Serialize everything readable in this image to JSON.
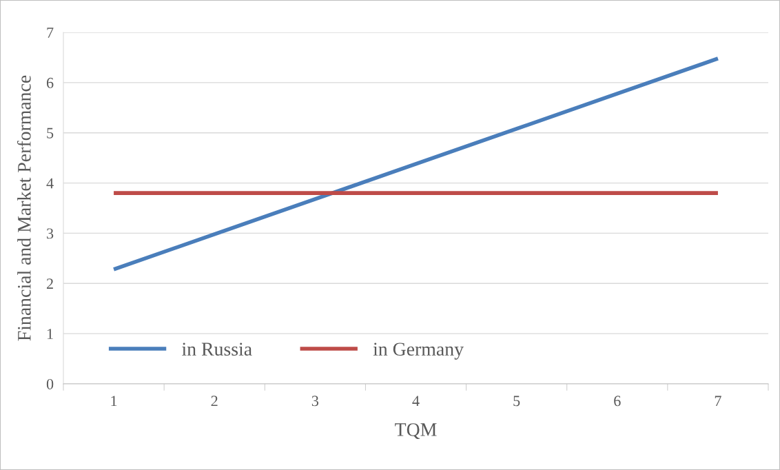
{
  "chart_data": {
    "type": "line",
    "xlabel": "TQM",
    "ylabel": "Financial and Market Performance",
    "categories": [
      "1",
      "2",
      "3",
      "4",
      "5",
      "6",
      "7"
    ],
    "series": [
      {
        "name": "in Russia",
        "color": "#4a7ebb",
        "values": [
          2.28,
          2.98,
          3.68,
          4.38,
          5.08,
          5.78,
          6.48
        ]
      },
      {
        "name": "in Germany",
        "color": "#be4b48",
        "values": [
          3.8,
          3.8,
          3.8,
          3.8,
          3.8,
          3.8,
          3.8
        ]
      }
    ],
    "ylim": [
      0,
      7
    ],
    "yticks": [
      0,
      1,
      2,
      3,
      4,
      5,
      6,
      7
    ],
    "grid": "y",
    "legend": "bottom left",
    "marker": "none",
    "line_style": "solid"
  }
}
